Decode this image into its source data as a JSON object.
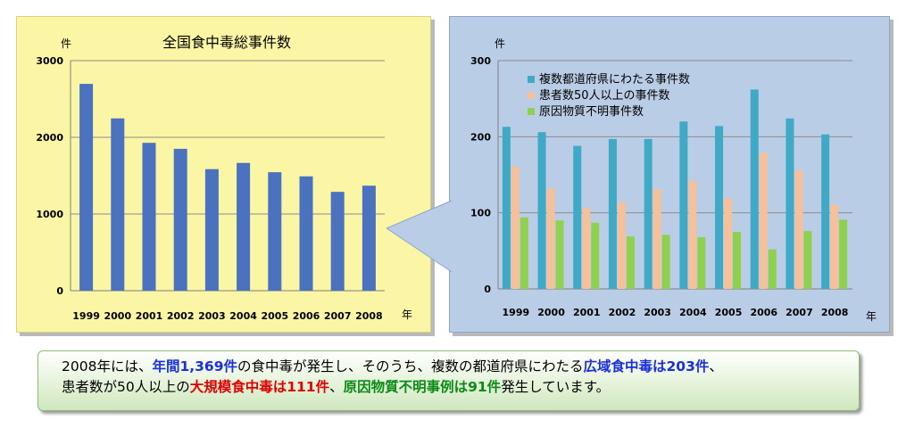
{
  "chart_data": [
    {
      "type": "bar",
      "title": "全国食中毒総事件数",
      "ylabel": "件",
      "xlabel": "年",
      "ylim": [
        0,
        3000
      ],
      "yticks": [
        0,
        1000,
        2000,
        3000
      ],
      "grid": true,
      "categories": [
        "1999",
        "2000",
        "2001",
        "2002",
        "2003",
        "2004",
        "2005",
        "2006",
        "2007",
        "2008"
      ],
      "series": [
        {
          "values": [
            2697,
            2247,
            1928,
            1850,
            1585,
            1666,
            1545,
            1491,
            1289,
            1369
          ],
          "color": "#4a72be"
        }
      ]
    },
    {
      "type": "bar",
      "ylabel": "件",
      "xlabel": "年",
      "ylim": [
        0,
        300
      ],
      "yticks": [
        0,
        100,
        200,
        300
      ],
      "grid": true,
      "legend_position": "top-left",
      "categories": [
        "1999",
        "2000",
        "2001",
        "2002",
        "2003",
        "2004",
        "2005",
        "2006",
        "2007",
        "2008"
      ],
      "series": [
        {
          "name": "複数都道府県にわたる事件数",
          "values": [
            213,
            206,
            188,
            197,
            197,
            220,
            214,
            262,
            224,
            203
          ],
          "color": "#3fa9c6"
        },
        {
          "name": "患者数50人以上の事件数",
          "values": [
            161,
            132,
            106,
            114,
            131,
            142,
            119,
            179,
            156,
            111
          ],
          "color": "#f6c09a"
        },
        {
          "name": "原因物質不明事件数",
          "values": [
            94,
            90,
            87,
            69,
            71,
            68,
            75,
            52,
            76,
            91
          ],
          "color": "#8fd14f"
        }
      ]
    }
  ],
  "summary": {
    "line1": [
      {
        "text": "2008年には、",
        "style": ""
      },
      {
        "text": "年間1,369件",
        "style": "blue"
      },
      {
        "text": "の食中毒が発生し、そのうち、複数の都道府県にわたる",
        "style": ""
      },
      {
        "text": "広域食中毒は203件",
        "style": "blue"
      },
      {
        "text": "、",
        "style": ""
      }
    ],
    "line2": [
      {
        "text": "患者数が50人以上の",
        "style": ""
      },
      {
        "text": "大規模食中毒は111件",
        "style": "red"
      },
      {
        "text": "、",
        "style": ""
      },
      {
        "text": "原因物質不明事例は91件",
        "style": "green"
      },
      {
        "text": "発生しています。",
        "style": ""
      }
    ]
  }
}
